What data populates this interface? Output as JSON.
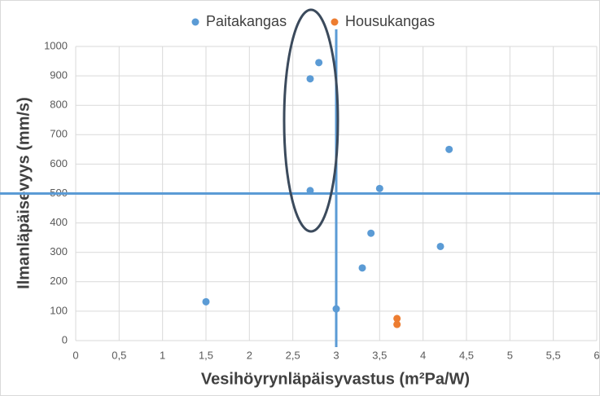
{
  "chart_data": {
    "type": "scatter",
    "xlabel": "Vesihöyrynläpäisyvastus (m²Pa/W)",
    "ylabel": "Ilmanläpäisevyys (mm/s)",
    "series": [
      {
        "name": "Paitakangas",
        "color": "#5b9bd5",
        "x": [
          1.5,
          2.7,
          2.8,
          2.7,
          3.5,
          4.3,
          3.4,
          4.2,
          3.3,
          3.0
        ],
        "values": [
          132,
          890,
          945,
          510,
          517,
          650,
          365,
          320,
          247,
          108
        ]
      },
      {
        "name": "Housukangas",
        "color": "#ed7d31",
        "x": [
          3.7,
          3.7
        ],
        "values": [
          75,
          55
        ]
      }
    ],
    "xlim": [
      0,
      6
    ],
    "xticks": [
      0,
      {
        "value": 0.5,
        "label": "0,5"
      },
      1,
      {
        "value": 1.5,
        "label": "1,5"
      },
      2,
      {
        "value": 2.5,
        "label": "2,5"
      },
      3,
      {
        "value": 3.5,
        "label": "3,5"
      },
      4,
      {
        "value": 4.5,
        "label": "4,5"
      },
      5,
      {
        "value": 5.5,
        "label": "5,5"
      },
      6
    ],
    "ylim": [
      0,
      1000
    ],
    "yticks": [
      0,
      100,
      200,
      300,
      400,
      500,
      600,
      700,
      800,
      900,
      1000
    ],
    "grid": true,
    "legend": "top",
    "reference_lines": {
      "x": 3,
      "y": 500,
      "color": "#5b9bd5"
    }
  }
}
